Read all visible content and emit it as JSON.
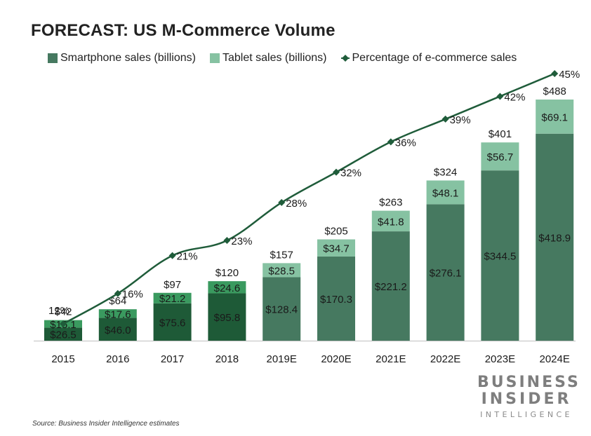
{
  "title": "FORECAST: US M-Commerce Volume",
  "legend": {
    "smartphone": "Smartphone sales (billions)",
    "tablet": "Tablet sales (billions)",
    "percentage": "Percentage of e-commerce sales"
  },
  "colors": {
    "smartphone_actual": "#1e5a37",
    "tablet_actual": "#3a9a5f",
    "smartphone_forecast": "#467960",
    "tablet_forecast": "#86c2a2",
    "line": "#1f5c3a",
    "axis": "#bfbfbf"
  },
  "chart_data": {
    "type": "bar",
    "stacked": true,
    "categories": [
      "2015",
      "2016",
      "2017",
      "2018",
      "2019E",
      "2020E",
      "2021E",
      "2022E",
      "2023E",
      "2024E"
    ],
    "forecast_from_index": 4,
    "series": [
      {
        "name": "Smartphone sales (billions)",
        "values": [
          26.5,
          46.0,
          75.6,
          95.8,
          128.4,
          170.3,
          221.2,
          276.1,
          344.5,
          418.9
        ],
        "labels": [
          "$26.5",
          "$46.0",
          "$75.6",
          "$95.8",
          "$128.4",
          "$170.3",
          "$221.2",
          "$276.1",
          "$344.5",
          "$418.9"
        ]
      },
      {
        "name": "Tablet sales (billions)",
        "values": [
          15.1,
          17.6,
          21.2,
          24.6,
          28.5,
          34.7,
          41.8,
          48.1,
          56.7,
          69.1
        ],
        "labels": [
          "$15.1",
          "$17.6",
          "$21.2",
          "$24.6",
          "$28.5",
          "$34.7",
          "$41.8",
          "$48.1",
          "$56.7",
          "$69.1"
        ]
      }
    ],
    "totals": [
      "$42",
      "$64",
      "$97",
      "$120",
      "$157",
      "$205",
      "$263",
      "$324",
      "$401",
      "$488"
    ],
    "total_values": [
      42,
      64,
      97,
      120,
      157,
      205,
      263,
      324,
      401,
      488
    ],
    "line": {
      "name": "Percentage of e-commerce sales",
      "values": [
        12,
        16,
        21,
        23,
        28,
        32,
        36,
        39,
        42,
        45
      ],
      "labels": [
        "12%",
        "16%",
        "21%",
        "23%",
        "28%",
        "32%",
        "36%",
        "39%",
        "42%",
        "45%"
      ]
    },
    "ylim": [
      0,
      500
    ],
    "line_ylim": [
      0,
      50
    ],
    "legend_position": "top"
  },
  "logo": {
    "line1": "BUSINESS",
    "line2": "INSIDER",
    "line3": "INTELLIGENCE"
  },
  "source": "Source: Business Insider Intelligence estimates"
}
